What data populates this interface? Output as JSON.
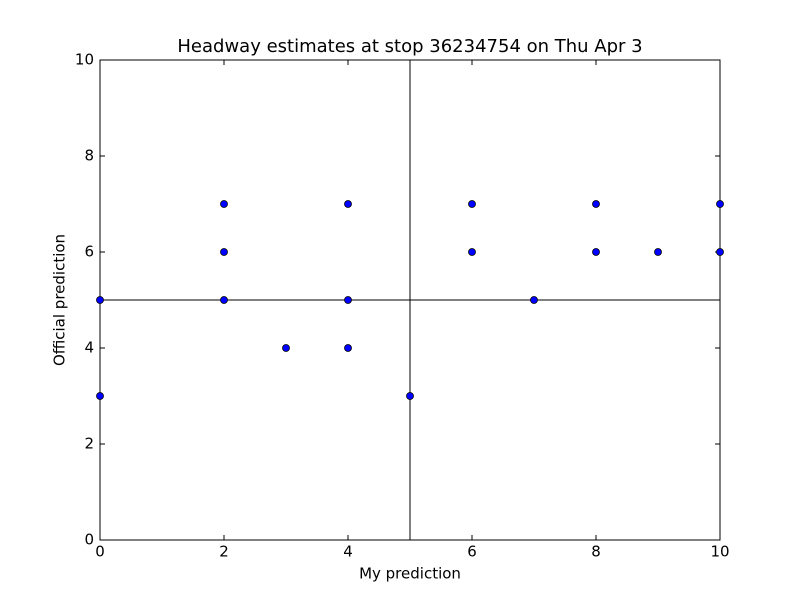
{
  "chart_data": {
    "type": "scatter",
    "title": "Headway estimates at stop 36234754 on Thu Apr 3",
    "x_label": "My prediction",
    "y_label": "Official prediction",
    "x": [
      0,
      0,
      2,
      2,
      2,
      3,
      4,
      4,
      4,
      5,
      6,
      6,
      7,
      8,
      8,
      9,
      10,
      10
    ],
    "values": [
      5,
      3,
      7,
      6,
      5,
      4,
      7,
      5,
      4,
      3,
      7,
      6,
      5,
      7,
      6,
      6,
      7,
      6
    ],
    "color": "#0000ff",
    "xlim": [
      0,
      10
    ],
    "ylim": [
      0,
      10
    ],
    "xticks": [
      0,
      2,
      4,
      6,
      8,
      10
    ],
    "yticks": [
      0,
      2,
      4,
      6,
      8,
      10
    ],
    "vlines": [
      5
    ],
    "hlines": [
      5
    ]
  }
}
